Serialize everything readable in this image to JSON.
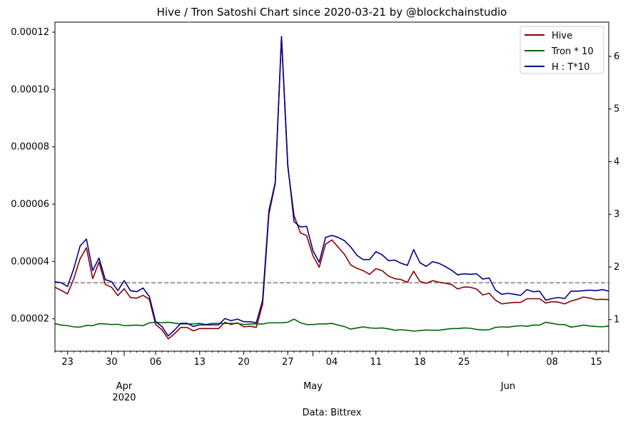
{
  "chart_data": {
    "type": "line",
    "title": "Hive / Tron Satoshi Chart since 2020-03-21 by @blockchainstudio",
    "xlabel": "Data: Bittrex",
    "x": [
      "2020-03-21",
      "2020-03-22",
      "2020-03-23",
      "2020-03-24",
      "2020-03-25",
      "2020-03-26",
      "2020-03-27",
      "2020-03-28",
      "2020-03-29",
      "2020-03-30",
      "2020-03-31",
      "2020-04-01",
      "2020-04-02",
      "2020-04-03",
      "2020-04-04",
      "2020-04-05",
      "2020-04-06",
      "2020-04-07",
      "2020-04-08",
      "2020-04-09",
      "2020-04-10",
      "2020-04-11",
      "2020-04-12",
      "2020-04-13",
      "2020-04-14",
      "2020-04-15",
      "2020-04-16",
      "2020-04-17",
      "2020-04-18",
      "2020-04-19",
      "2020-04-20",
      "2020-04-21",
      "2020-04-22",
      "2020-04-23",
      "2020-04-24",
      "2020-04-25",
      "2020-04-26",
      "2020-04-27",
      "2020-04-28",
      "2020-04-29",
      "2020-04-30",
      "2020-05-01",
      "2020-05-02",
      "2020-05-03",
      "2020-05-04",
      "2020-05-05",
      "2020-05-06",
      "2020-05-07",
      "2020-05-08",
      "2020-05-09",
      "2020-05-10",
      "2020-05-11",
      "2020-05-12",
      "2020-05-13",
      "2020-05-14",
      "2020-05-15",
      "2020-05-16",
      "2020-05-17",
      "2020-05-18",
      "2020-05-19",
      "2020-05-20",
      "2020-05-21",
      "2020-05-22",
      "2020-05-23",
      "2020-05-24",
      "2020-05-25",
      "2020-05-26",
      "2020-05-27",
      "2020-05-28",
      "2020-05-29",
      "2020-05-30",
      "2020-05-31",
      "2020-06-01",
      "2020-06-02",
      "2020-06-03",
      "2020-06-04",
      "2020-06-05",
      "2020-06-06",
      "2020-06-07",
      "2020-06-08",
      "2020-06-09",
      "2020-06-10",
      "2020-06-11",
      "2020-06-12",
      "2020-06-13",
      "2020-06-14",
      "2020-06-15",
      "2020-06-16",
      "2020-06-17"
    ],
    "series": [
      {
        "name": "Hive",
        "color": "#8b0000",
        "axis": "left",
        "values": [
          3.1e-05,
          2.99e-05,
          2.87e-05,
          3.4e-05,
          4.1e-05,
          4.48e-05,
          3.4e-05,
          3.98e-05,
          3.2e-05,
          3.1e-05,
          2.81e-05,
          3.05e-05,
          2.74e-05,
          2.72e-05,
          2.82e-05,
          2.68e-05,
          1.8e-05,
          1.62e-05,
          1.3e-05,
          1.48e-05,
          1.7e-05,
          1.7e-05,
          1.58e-05,
          1.66e-05,
          1.66e-05,
          1.66e-05,
          1.66e-05,
          1.88e-05,
          1.8e-05,
          1.86e-05,
          1.72e-05,
          1.74e-05,
          1.7e-05,
          2.5e-05,
          5.66e-05,
          6.7e-05,
          0.0001185,
          7.3e-05,
          5.6e-05,
          5e-05,
          4.9e-05,
          4.2e-05,
          3.8e-05,
          4.6e-05,
          4.75e-05,
          4.5e-05,
          4.25e-05,
          3.88e-05,
          3.76e-05,
          3.68e-05,
          3.55e-05,
          3.75e-05,
          3.68e-05,
          3.49e-05,
          3.4e-05,
          3.37e-05,
          3.27e-05,
          3.66e-05,
          3.3e-05,
          3.24e-05,
          3.33e-05,
          3.28e-05,
          3.24e-05,
          3.2e-05,
          3.04e-05,
          3.11e-05,
          3.1e-05,
          3.04e-05,
          2.83e-05,
          2.89e-05,
          2.65e-05,
          2.52e-05,
          2.55e-05,
          2.57e-05,
          2.57e-05,
          2.7e-05,
          2.7e-05,
          2.7e-05,
          2.55e-05,
          2.6e-05,
          2.58e-05,
          2.52e-05,
          2.62e-05,
          2.68e-05,
          2.76e-05,
          2.72e-05,
          2.67e-05,
          2.68e-05,
          2.67e-05
        ]
      },
      {
        "name": "Tron * 10",
        "color": "#006400",
        "axis": "left",
        "values": [
          1.83e-05,
          1.78e-05,
          1.76e-05,
          1.72e-05,
          1.71e-05,
          1.77e-05,
          1.76e-05,
          1.83e-05,
          1.82e-05,
          1.8e-05,
          1.81e-05,
          1.76e-05,
          1.77e-05,
          1.78e-05,
          1.76e-05,
          1.86e-05,
          1.88e-05,
          1.86e-05,
          1.88e-05,
          1.85e-05,
          1.82e-05,
          1.82e-05,
          1.82e-05,
          1.84e-05,
          1.8e-05,
          1.84e-05,
          1.84e-05,
          1.84e-05,
          1.84e-05,
          1.84e-05,
          1.8e-05,
          1.82e-05,
          1.82e-05,
          1.82e-05,
          1.86e-05,
          1.86e-05,
          1.86e-05,
          1.88e-05,
          1.99e-05,
          1.86e-05,
          1.8e-05,
          1.8e-05,
          1.82e-05,
          1.82e-05,
          1.84e-05,
          1.78e-05,
          1.73e-05,
          1.64e-05,
          1.68e-05,
          1.72e-05,
          1.68e-05,
          1.67e-05,
          1.68e-05,
          1.65e-05,
          1.6e-05,
          1.62e-05,
          1.6e-05,
          1.57e-05,
          1.59e-05,
          1.61e-05,
          1.6e-05,
          1.6e-05,
          1.63e-05,
          1.66e-05,
          1.66e-05,
          1.68e-05,
          1.67e-05,
          1.63e-05,
          1.61e-05,
          1.62e-05,
          1.7e-05,
          1.72e-05,
          1.71e-05,
          1.74e-05,
          1.76e-05,
          1.74e-05,
          1.78e-05,
          1.78e-05,
          1.88e-05,
          1.84e-05,
          1.8e-05,
          1.8e-05,
          1.71e-05,
          1.74e-05,
          1.78e-05,
          1.75e-05,
          1.73e-05,
          1.72e-05,
          1.75e-05
        ]
      },
      {
        "name": "H : T*10",
        "color": "#00008b",
        "axis": "right",
        "values": [
          1.72,
          1.7,
          1.63,
          1.97,
          2.4,
          2.53,
          1.93,
          2.17,
          1.76,
          1.72,
          1.55,
          1.74,
          1.55,
          1.53,
          1.6,
          1.44,
          0.96,
          0.87,
          0.69,
          0.8,
          0.93,
          0.93,
          0.87,
          0.9,
          0.9,
          0.9,
          0.9,
          1.02,
          0.98,
          1.01,
          0.96,
          0.96,
          0.94,
          1.37,
          3.07,
          3.6,
          6.37,
          3.94,
          2.86,
          2.76,
          2.77,
          2.31,
          2.09,
          2.56,
          2.6,
          2.56,
          2.5,
          2.38,
          2.22,
          2.14,
          2.14,
          2.29,
          2.23,
          2.12,
          2.13,
          2.07,
          2.03,
          2.33,
          2.08,
          2.01,
          2.1,
          2.07,
          2.01,
          1.94,
          1.85,
          1.87,
          1.86,
          1.87,
          1.77,
          1.79,
          1.56,
          1.48,
          1.5,
          1.48,
          1.46,
          1.57,
          1.53,
          1.54,
          1.37,
          1.4,
          1.42,
          1.4,
          1.54,
          1.54,
          1.55,
          1.56,
          1.55,
          1.57,
          1.54
        ]
      }
    ],
    "reference_line": {
      "value": 1.7,
      "axis": "right",
      "color": "#808080",
      "style": "dashed"
    },
    "ylim_left": [
      8.7e-06,
      0.0001235
    ],
    "ylim_right": [
      0.4,
      6.65
    ],
    "yticks_left": [
      "0.00002",
      "0.00004",
      "0.00006",
      "0.00008",
      "0.00010",
      "0.00012"
    ],
    "yticks_right": [
      "1",
      "2",
      "3",
      "4",
      "5",
      "6"
    ],
    "xticks_major": [
      {
        "date": "2020-04-01",
        "label": "Apr\n2020"
      },
      {
        "date": "2020-05-01",
        "label": "May"
      },
      {
        "date": "2020-06-01",
        "label": "Jun"
      }
    ],
    "xticks_minor": [
      {
        "date": "2020-03-23",
        "label": "23"
      },
      {
        "date": "2020-03-30",
        "label": "30"
      },
      {
        "date": "2020-04-06",
        "label": "06"
      },
      {
        "date": "2020-04-13",
        "label": "13"
      },
      {
        "date": "2020-04-20",
        "label": "20"
      },
      {
        "date": "2020-04-27",
        "label": "27"
      },
      {
        "date": "2020-05-04",
        "label": "04"
      },
      {
        "date": "2020-05-11",
        "label": "11"
      },
      {
        "date": "2020-05-18",
        "label": "18"
      },
      {
        "date": "2020-05-25",
        "label": "25"
      },
      {
        "date": "2020-06-08",
        "label": "08"
      },
      {
        "date": "2020-06-15",
        "label": "15"
      }
    ],
    "legend_position": "top-right",
    "grid": false
  }
}
